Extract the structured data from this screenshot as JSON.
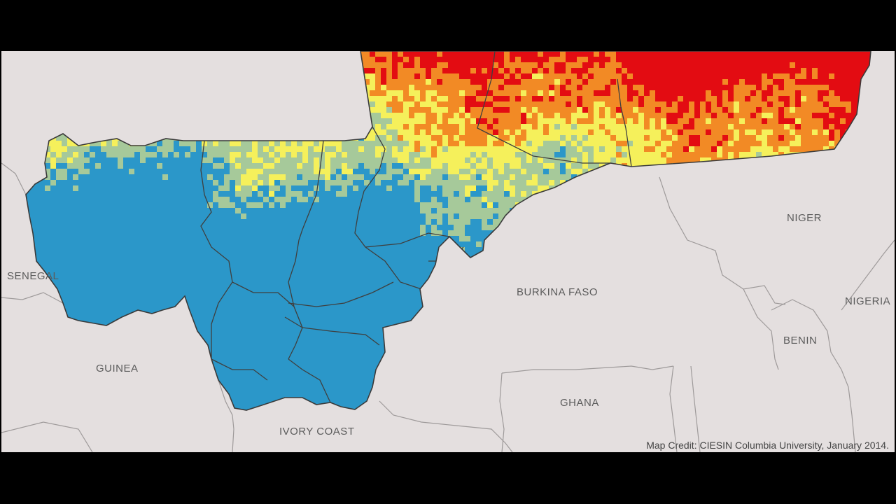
{
  "labels": {
    "senegal": "SENEGAL",
    "guinea": "GUINEA",
    "ivory_coast": "IVORY COAST",
    "burkina_faso": "BURKINA FASO",
    "niger": "NIGER",
    "nigeria": "NIGERIA",
    "benin": "BENIN",
    "ghana": "GHANA"
  },
  "credit": "Map Credit: CIESIN Columbia University, January 2014.",
  "colors": {
    "background": "#e4dfdf",
    "frame": "#000000",
    "class_1": "#2b97c9",
    "class_2": "#a6c99a",
    "class_3": "#f5f05b",
    "class_4": "#f28a25",
    "class_5": "#e30c12",
    "border": "#444444",
    "neighbor_border": "#9a9a9a"
  }
}
